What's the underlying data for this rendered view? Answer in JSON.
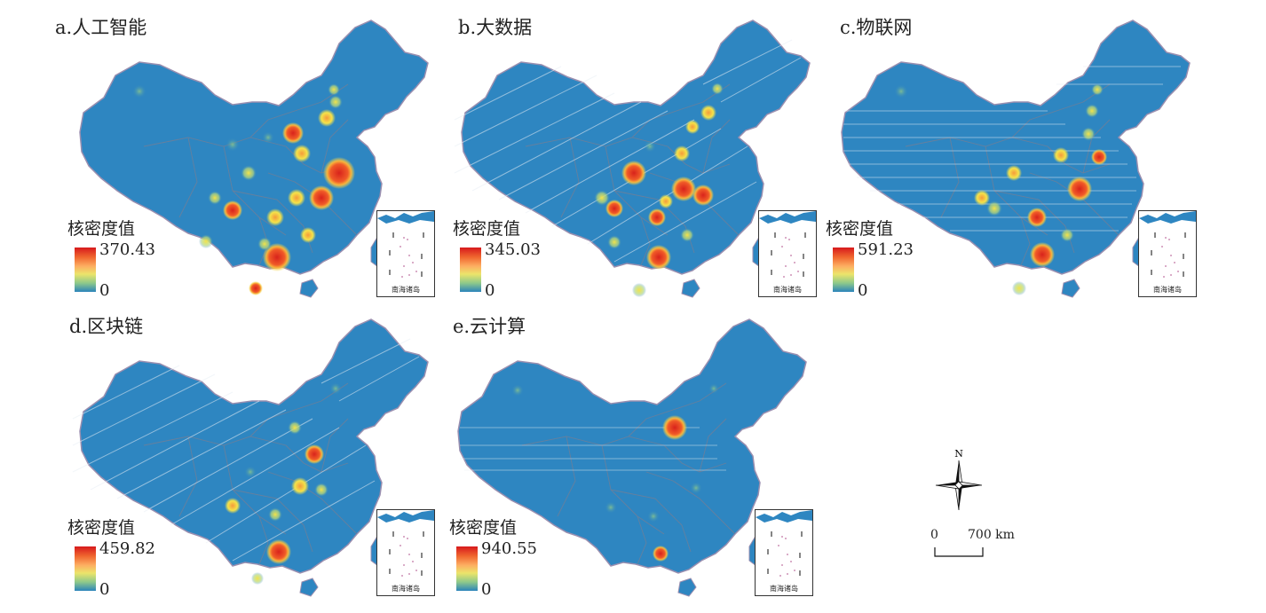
{
  "colors": {
    "ocean": "#ffffff",
    "land": "#2e86c1",
    "border": "#7a7a9a",
    "hotspot_low": "#f4e34a",
    "hotspot_mid": "#f59b3b",
    "hotspot_high": "#d8231c"
  },
  "legend_title": "核密度值",
  "inset_label": "南海诸岛",
  "panels": [
    {
      "id": "a",
      "title": "a.人工智能",
      "max": "370.43",
      "min": "0"
    },
    {
      "id": "b",
      "title": "b.大数据",
      "max": "345.03",
      "min": "0"
    },
    {
      "id": "c",
      "title": "c.物联网",
      "max": "591.23",
      "min": "0"
    },
    {
      "id": "d",
      "title": "d.区块链",
      "max": "459.82",
      "min": "0"
    },
    {
      "id": "e",
      "title": "e.云计算",
      "max": "940.55",
      "min": "0"
    }
  ],
  "compass": {
    "north_label": "N"
  },
  "scale": {
    "zero": "0",
    "distance": "700 km"
  }
}
